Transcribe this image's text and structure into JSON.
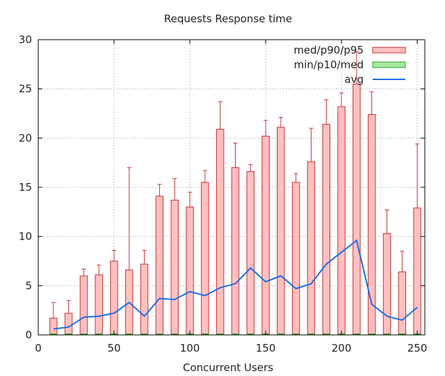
{
  "chart_data": {
    "type": "bar",
    "title": "Requests Response time",
    "xlabel": "Concurrent Users",
    "ylabel": "",
    "xlim": [
      0,
      255
    ],
    "ylim": [
      0,
      30
    ],
    "xticks": [
      0,
      50,
      100,
      150,
      200,
      250
    ],
    "yticks": [
      0,
      5,
      10,
      15,
      20,
      25,
      30
    ],
    "grid": "dotted",
    "legend_position": "top-right",
    "x": [
      10,
      20,
      30,
      40,
      50,
      60,
      70,
      80,
      90,
      100,
      110,
      120,
      130,
      140,
      150,
      160,
      170,
      180,
      190,
      200,
      210,
      220,
      230,
      240,
      250
    ],
    "series": [
      {
        "name": "med/p90/p95",
        "kind": "candlestick",
        "color": "#ffc0c0",
        "edge_color": "#c83232",
        "med": [
          0.1,
          0.1,
          0.1,
          0.1,
          0.1,
          0.1,
          0.1,
          0.1,
          0.1,
          0.1,
          0.1,
          0.1,
          0.1,
          0.1,
          0.1,
          0.1,
          0.1,
          0.1,
          0.1,
          0.1,
          0.1,
          0.1,
          0.1,
          0.1,
          0.1
        ],
        "p90": [
          1.7,
          2.2,
          6.0,
          6.1,
          7.5,
          6.6,
          7.2,
          14.1,
          13.7,
          13.0,
          15.5,
          20.9,
          17.0,
          16.6,
          20.2,
          21.1,
          15.5,
          17.6,
          21.4,
          23.2,
          25.5,
          22.4,
          10.3,
          6.4,
          12.9
        ],
        "p95": [
          3.3,
          3.5,
          6.7,
          7.1,
          8.6,
          17.0,
          8.6,
          15.3,
          15.9,
          14.5,
          16.7,
          23.7,
          19.5,
          17.3,
          21.8,
          22.1,
          16.4,
          21.0,
          23.9,
          24.6,
          28.8,
          24.7,
          12.7,
          8.5,
          19.4
        ]
      },
      {
        "name": "min/p10/med",
        "kind": "candlestick",
        "color": "#a8e8a0",
        "edge_color": "#2e9b2e",
        "min": [
          0.0,
          0.0,
          0.0,
          0.0,
          0.0,
          0.0,
          0.0,
          0.0,
          0.0,
          0.0,
          0.0,
          0.0,
          0.0,
          0.0,
          0.0,
          0.0,
          0.0,
          0.0,
          0.0,
          0.0,
          0.0,
          0.0,
          0.0,
          0.0,
          0.0
        ],
        "p10": [
          0.03,
          0.03,
          0.03,
          0.03,
          0.03,
          0.03,
          0.03,
          0.03,
          0.03,
          0.03,
          0.03,
          0.03,
          0.03,
          0.03,
          0.03,
          0.03,
          0.03,
          0.03,
          0.03,
          0.03,
          0.03,
          0.03,
          0.03,
          0.03,
          0.03
        ],
        "med": [
          0.1,
          0.1,
          0.1,
          0.1,
          0.1,
          0.1,
          0.1,
          0.1,
          0.1,
          0.1,
          0.1,
          0.1,
          0.1,
          0.1,
          0.1,
          0.1,
          0.1,
          0.1,
          0.1,
          0.1,
          0.1,
          0.1,
          0.1,
          0.1,
          0.1
        ]
      },
      {
        "name": "avg",
        "kind": "line",
        "color": "#1a6ee6",
        "values": [
          0.6,
          0.8,
          1.8,
          1.9,
          2.2,
          3.3,
          1.9,
          3.7,
          3.6,
          4.4,
          4.0,
          4.8,
          5.2,
          6.8,
          5.4,
          6.0,
          4.7,
          5.2,
          7.2,
          8.4,
          9.6,
          3.1,
          1.9,
          1.5,
          2.8
        ]
      }
    ]
  }
}
